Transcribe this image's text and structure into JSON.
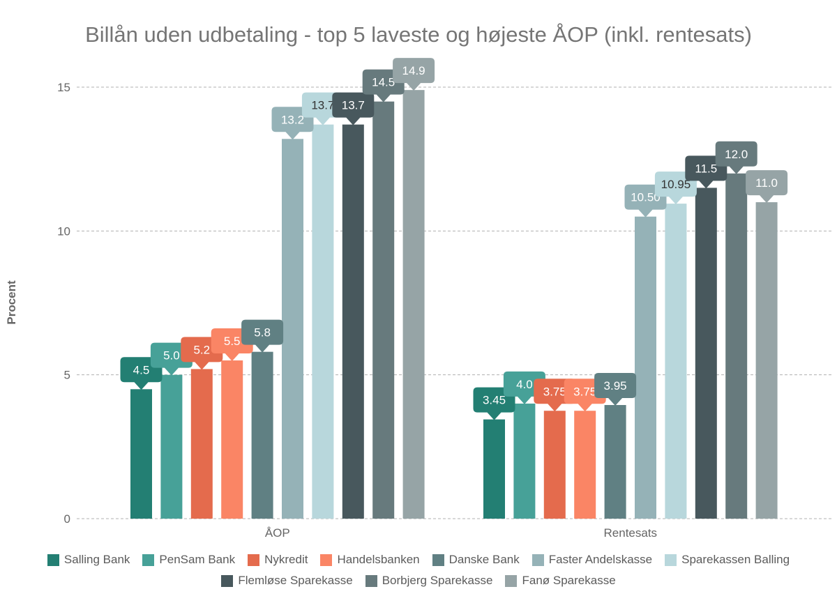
{
  "chart_data": {
    "type": "bar",
    "title": "Billån uden udbetaling - top 5 laveste og højeste ÅOP (inkl. rentesats)",
    "xlabel": "",
    "ylabel": "Procent",
    "ylim": [
      0,
      15
    ],
    "yticks": [
      "0",
      "5",
      "10",
      "15"
    ],
    "grid": true,
    "legend_position": "bottom",
    "categories": [
      "ÅOP",
      "Rentesats"
    ],
    "series": [
      {
        "name": "Salling Bank",
        "color": "#237f73",
        "values": [
          4.5,
          3.45
        ],
        "labels": [
          "4.5",
          "3.45"
        ],
        "label_text_color": "#ffffff"
      },
      {
        "name": "PenSam Bank",
        "color": "#47a198",
        "values": [
          5.0,
          4.0
        ],
        "labels": [
          "5.0",
          "4.0"
        ],
        "label_text_color": "#ffffff"
      },
      {
        "name": "Nykredit",
        "color": "#e46b4d",
        "values": [
          5.2,
          3.75
        ],
        "labels": [
          "5.2",
          "3.75"
        ],
        "label_text_color": "#ffffff"
      },
      {
        "name": "Handelsbanken",
        "color": "#fa8565",
        "values": [
          5.5,
          3.75
        ],
        "labels": [
          "5.5",
          "3.75"
        ],
        "label_text_color": "#ffffff"
      },
      {
        "name": "Danske Bank",
        "color": "#608083",
        "values": [
          5.8,
          3.95
        ],
        "labels": [
          "5.8",
          "3.95"
        ],
        "label_text_color": "#ffffff"
      },
      {
        "name": "Faster Andelskasse",
        "color": "#95b2b7",
        "values": [
          13.2,
          10.5
        ],
        "labels": [
          "13.2",
          "10.50"
        ],
        "label_text_color": "#ffffff"
      },
      {
        "name": "Sparekassen Balling",
        "color": "#b8d7dc",
        "values": [
          13.7,
          10.95
        ],
        "labels": [
          "13.7",
          "10.95"
        ],
        "label_text_color": "#333333"
      },
      {
        "name": "Flemløse Sparekasse",
        "color": "#48585d",
        "values": [
          13.7,
          11.5
        ],
        "labels": [
          "13.7",
          "11.5"
        ],
        "label_text_color": "#ffffff"
      },
      {
        "name": "Borbjerg Sparekasse",
        "color": "#677a7d",
        "values": [
          14.5,
          12.0
        ],
        "labels": [
          "14.5",
          "12.0"
        ],
        "label_text_color": "#ffffff"
      },
      {
        "name": "Fanø Sparekasse",
        "color": "#96a4a6",
        "values": [
          14.9,
          11.0
        ],
        "labels": [
          "14.9",
          "11.0"
        ],
        "label_text_color": "#ffffff"
      }
    ]
  }
}
